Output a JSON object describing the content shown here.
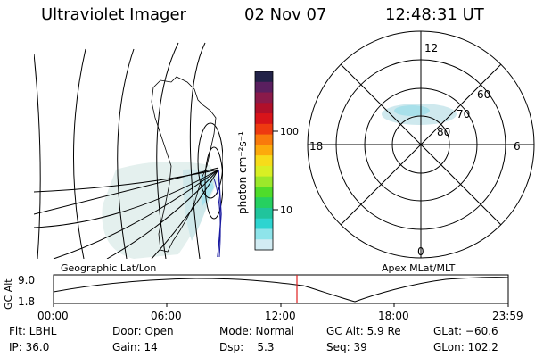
{
  "header": {
    "instrument": "Ultraviolet Imager",
    "date": "02 Nov 07",
    "time": "12:48:31 UT"
  },
  "colorbar": {
    "unit_label": "photon cm⁻²s⁻¹",
    "tick_labels": [
      "100",
      "10"
    ],
    "colors": [
      "#222248",
      "#5a1f5f",
      "#8a1a4a",
      "#b0102a",
      "#d8141a",
      "#ee3a10",
      "#f97a0c",
      "#fcaa0c",
      "#f7dc1a",
      "#d9ef24",
      "#9ce82a",
      "#4fdc2a",
      "#26d060",
      "#20c49c",
      "#2ed4d0",
      "#8ee4ea",
      "#d2ecf3"
    ]
  },
  "polar_plot": {
    "mlt_labels": {
      "top": "12",
      "left": "18",
      "right": "6",
      "bottom": "0"
    },
    "lat_labels": [
      "60",
      "70",
      "80"
    ]
  },
  "map_labels": {
    "left": "Geographic Lat/Lon",
    "right": "Apex MLat/MLT"
  },
  "orbit_plot": {
    "y_title": "GC Alt",
    "y_ticks": [
      "9.0",
      "1.8"
    ],
    "x_ticks": [
      "00:00",
      "06:00",
      "12:00",
      "18:00",
      "23:59"
    ],
    "marker_color": "#e02020"
  },
  "footer": {
    "rows": [
      [
        "Flt: LBHL",
        "Door: Open",
        "Mode: Normal",
        "GC Alt: 5.9 Re",
        "GLat: −60.6"
      ],
      [
        "IP: 36.0",
        "Gain: 14",
        "Dsp:    5.3",
        "Seq: 39",
        "GLon: 102.2"
      ]
    ]
  }
}
